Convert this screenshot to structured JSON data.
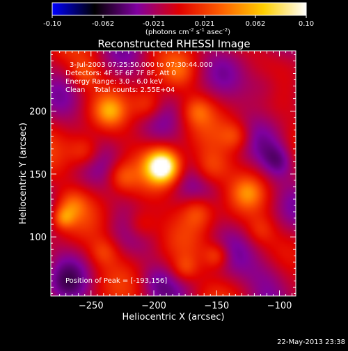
{
  "colorbar": {
    "ticks": [
      "-0.10",
      "-0.062",
      "-0.021",
      "0.021",
      "0.062",
      "0.10"
    ],
    "units_main": "(photons cm",
    "units_exp1": "-2",
    "units_mid1": " s",
    "units_exp2": "-1",
    "units_mid2": " asec",
    "units_exp3": "-2",
    "units_end": ")",
    "colors": [
      "#0000ff",
      "#000000",
      "#8000a0",
      "#e00000",
      "#ff6000",
      "#ffd000",
      "#ffffff"
    ]
  },
  "chart_data": {
    "type": "heatmap",
    "title": "Reconstructed RHESSI Image",
    "xlabel": "Heliocentric X (arcsec)",
    "ylabel": "Heliocentric Y (arcsec)",
    "xlim": [
      -282,
      -87
    ],
    "ylim": [
      53,
      248
    ],
    "xticks": [
      -250,
      -200,
      -150,
      -100
    ],
    "yticks": [
      100,
      150,
      200
    ],
    "value_range": [
      -0.1,
      0.1
    ],
    "peak": {
      "x": -193,
      "y": 156
    },
    "blobs": [
      {
        "x": -193,
        "y": 156,
        "v": 0.12,
        "s": 9
      },
      {
        "x": -235,
        "y": 200,
        "v": 0.04,
        "s": 8
      },
      {
        "x": -205,
        "y": 205,
        "v": 0.035,
        "s": 9
      },
      {
        "x": -165,
        "y": 200,
        "v": 0.03,
        "s": 8
      },
      {
        "x": -255,
        "y": 168,
        "v": 0.035,
        "s": 9
      },
      {
        "x": -225,
        "y": 148,
        "v": 0.03,
        "s": 8
      },
      {
        "x": -265,
        "y": 125,
        "v": 0.03,
        "s": 8
      },
      {
        "x": -272,
        "y": 115,
        "v": 0.04,
        "s": 6
      },
      {
        "x": -155,
        "y": 155,
        "v": 0.035,
        "s": 10
      },
      {
        "x": -135,
        "y": 180,
        "v": 0.03,
        "s": 8
      },
      {
        "x": -165,
        "y": 120,
        "v": 0.035,
        "s": 9
      },
      {
        "x": -125,
        "y": 135,
        "v": 0.03,
        "s": 8
      },
      {
        "x": -210,
        "y": 110,
        "v": 0.03,
        "s": 9
      },
      {
        "x": -150,
        "y": 85,
        "v": 0.035,
        "s": 7
      },
      {
        "x": -175,
        "y": 75,
        "v": 0.025,
        "s": 7
      },
      {
        "x": -240,
        "y": 88,
        "v": 0.025,
        "s": 8
      },
      {
        "x": -255,
        "y": 230,
        "v": 0.03,
        "s": 8
      },
      {
        "x": -115,
        "y": 105,
        "v": 0.02,
        "s": 8
      },
      {
        "x": -180,
        "y": 232,
        "v": 0.02,
        "s": 8
      },
      {
        "x": -110,
        "y": 220,
        "v": -0.03,
        "s": 12
      },
      {
        "x": -105,
        "y": 70,
        "v": -0.03,
        "s": 14
      },
      {
        "x": -100,
        "y": 160,
        "v": -0.03,
        "s": 10
      },
      {
        "x": -270,
        "y": 60,
        "v": -0.02,
        "s": 12
      },
      {
        "x": -200,
        "y": 65,
        "v": -0.015,
        "s": 10
      }
    ]
  },
  "annotations": {
    "time_range": "3-Jul-2003 07:25:50.000 to 07:30:44.000",
    "detectors": "Detectors: 4F 5F 6F 7F 8F, Att 0",
    "energy": "Energy Range: 3.0 - 6.0 keV",
    "clean": "Clean    Total counts: 2.55E+04",
    "peak_position": "Position of Peak = [-193,156]"
  },
  "footer": {
    "timestamp": "22-May-2013 23:38"
  }
}
